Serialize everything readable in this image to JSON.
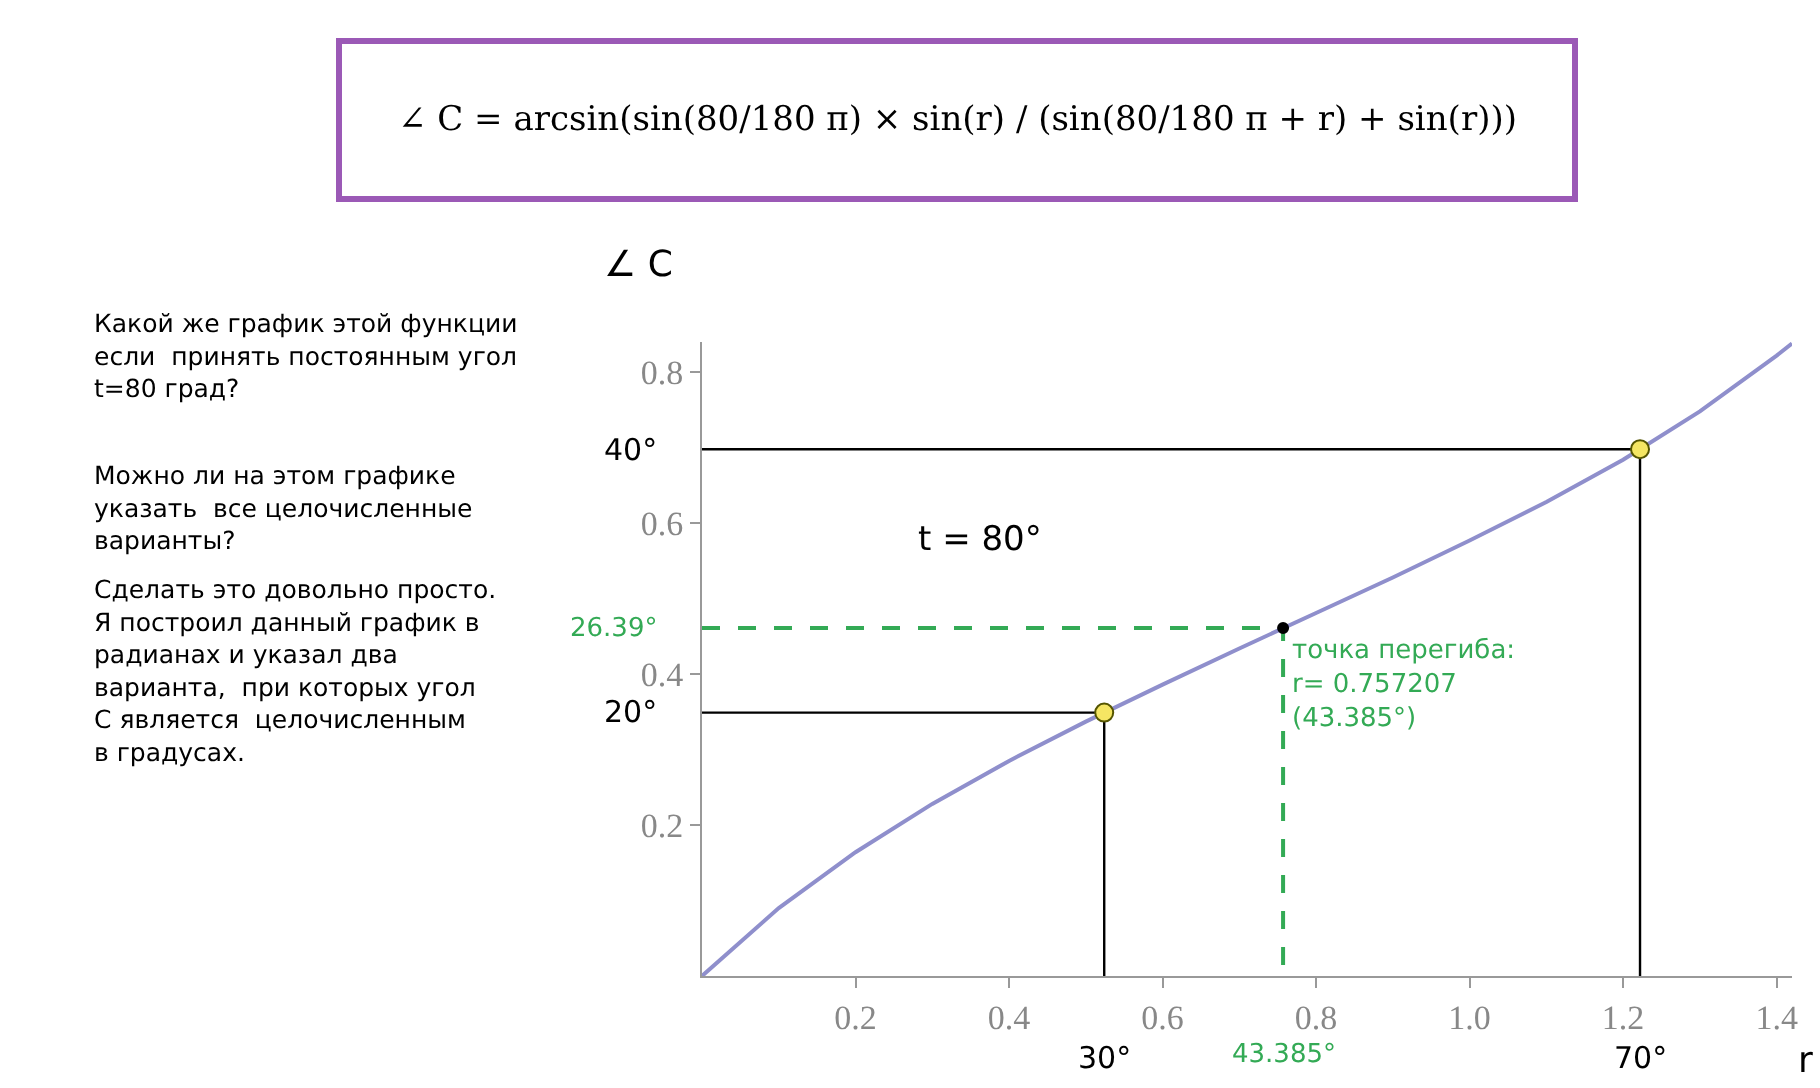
{
  "chart_data": {
    "type": "line",
    "title": "∠ C = arcsin(sin(80/180 π) × sin(r) / (sin(80/180 π + r) + sin(r)))",
    "xlabel": "r",
    "ylabel": "∠ C",
    "xlim": [
      0,
      1.42
    ],
    "ylim": [
      0,
      0.84
    ],
    "xticks": [
      0.2,
      0.4,
      0.6,
      0.8,
      {
        "value": 1,
        "label": "1.0"
      },
      1.2,
      1.4
    ],
    "yticks": [
      0.2,
      0.4,
      0.6,
      0.8
    ],
    "series": [
      {
        "color": "#8f8fcc",
        "x": [
          0,
          0.1,
          0.2,
          0.3,
          0.4,
          0.5,
          0.6,
          0.7,
          0.8,
          0.9,
          1.0,
          1.1,
          1.2,
          1.3,
          1.4,
          1.42
        ],
        "values": [
          0,
          0.09,
          0.164,
          0.228,
          0.285,
          0.337,
          0.386,
          0.434,
          0.481,
          0.528,
          0.577,
          0.628,
          0.684,
          0.748,
          0.822,
          0.838
        ]
      },
      {
        "type": "line",
        "color": "#000000",
        "line_style": "solid",
        "x": [
          0,
          0.524,
          0.524
        ],
        "values": [
          0.349,
          0.349,
          0
        ]
      },
      {
        "type": "line",
        "color": "#000000",
        "line_style": "solid",
        "x": [
          0,
          1.222,
          1.222
        ],
        "values": [
          0.698,
          0.698,
          0
        ]
      },
      {
        "type": "line",
        "color": "#33aa55",
        "line_style": "dashed",
        "x": [
          0,
          0.757,
          0.757
        ],
        "values": [
          0.461,
          0.461,
          0
        ]
      },
      {
        "type": "scatter",
        "color": "#f5e663",
        "marker": "circle",
        "x": [
          0.524,
          1.222
        ],
        "values": [
          0.349,
          0.698
        ]
      },
      {
        "type": "scatter",
        "color": "#000000",
        "marker": "circle",
        "x": [
          0.757
        ],
        "values": [
          0.461
        ]
      }
    ],
    "annotations": [
      {
        "text": "40°",
        "x": 0,
        "y": 0.698
      },
      {
        "text": "20°",
        "x": 0,
        "y": 0.349
      },
      {
        "text": "26.39°",
        "x": 0,
        "y": 0.461
      },
      {
        "text": "30°",
        "x": 0.524,
        "y": 0
      },
      {
        "text": "43.385°",
        "x": 0.757,
        "y": 0
      },
      {
        "text": "70°",
        "x": 1.222,
        "y": 0
      },
      {
        "text": "точка перегиба:\nr= 0.757207\n(43.385°)",
        "x": 0.757,
        "y": 0.461
      },
      "t = 80°",
      "Какой же график этой функции\nесли  принять постоянным угол\nt=80 град?",
      "Можно ли на этом графике\nуказать  все целочисленные\nварианты?",
      "Сделать это довольно просто.\nЯ построил данный график в\nрадианах и указал два\nварианта,  при которых угол\nC является  целочисленным\nв градусах."
    ]
  }
}
